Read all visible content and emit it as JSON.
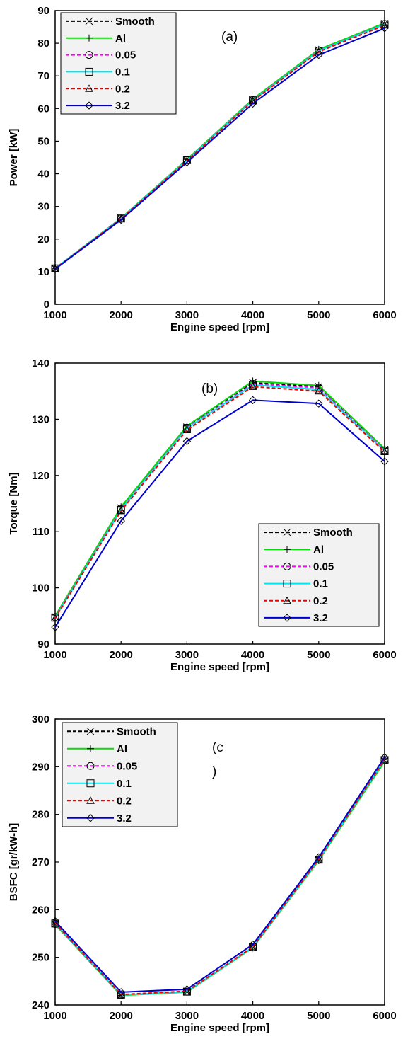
{
  "chart_data": [
    {
      "type": "line",
      "panel_label_lines": [
        "(a)"
      ],
      "x": [
        1000,
        2000,
        3000,
        4000,
        5000,
        6000
      ],
      "xlabel": "Engine speed [rpm]",
      "ylabel": "Power [kW]",
      "xlim": [
        1000,
        6000
      ],
      "ylim": [
        0,
        90
      ],
      "xticks": [
        "1000",
        "2000",
        "3000",
        "4000",
        "5000",
        "6000"
      ],
      "yticks": [
        "0",
        "10",
        "20",
        "30",
        "40",
        "50",
        "60",
        "70",
        "80",
        "90"
      ],
      "legend_position": "top-left",
      "grid": false,
      "series": [
        {
          "name": "Smooth",
          "values": [
            11.0,
            26.4,
            44.3,
            62.7,
            77.9,
            86.0
          ]
        },
        {
          "name": "Al",
          "values": [
            11.0,
            26.4,
            44.4,
            62.9,
            78.1,
            86.2
          ]
        },
        {
          "name": "0.05",
          "values": [
            11.0,
            26.3,
            44.2,
            62.6,
            77.8,
            85.9
          ]
        },
        {
          "name": "0.1",
          "values": [
            11.0,
            26.3,
            44.2,
            62.5,
            77.7,
            85.8
          ]
        },
        {
          "name": "0.2",
          "values": [
            10.9,
            26.2,
            44.0,
            62.3,
            77.4,
            85.5
          ]
        },
        {
          "name": "3.2",
          "values": [
            10.8,
            25.9,
            43.5,
            61.5,
            76.4,
            84.6
          ]
        }
      ]
    },
    {
      "type": "line",
      "panel_label_lines": [
        "(b)"
      ],
      "x": [
        1000,
        2000,
        3000,
        4000,
        5000,
        6000
      ],
      "xlabel": "Engine speed [rpm]",
      "ylabel": "Torque [Nm]",
      "xlim": [
        1000,
        6000
      ],
      "ylim": [
        90,
        140
      ],
      "xticks": [
        "1000",
        "2000",
        "3000",
        "4000",
        "5000",
        "6000"
      ],
      "yticks": [
        "90",
        "100",
        "110",
        "120",
        "130",
        "140"
      ],
      "legend_position": "bottom-right",
      "grid": false,
      "series": [
        {
          "name": "Smooth",
          "values": [
            94.9,
            114.2,
            128.6,
            136.5,
            135.8,
            124.6
          ]
        },
        {
          "name": "Al",
          "values": [
            95.0,
            114.4,
            128.8,
            136.8,
            136.0,
            124.8
          ]
        },
        {
          "name": "0.05",
          "values": [
            94.8,
            114.0,
            128.5,
            136.3,
            135.6,
            124.5
          ]
        },
        {
          "name": "0.1",
          "values": [
            94.7,
            113.9,
            128.4,
            136.1,
            135.3,
            124.4
          ]
        },
        {
          "name": "0.2",
          "values": [
            94.6,
            113.7,
            128.1,
            135.8,
            135.0,
            124.2
          ]
        },
        {
          "name": "3.2",
          "values": [
            93.0,
            111.9,
            126.1,
            133.4,
            132.8,
            122.5
          ]
        }
      ]
    },
    {
      "type": "line",
      "panel_label_lines": [
        "(c",
        ")"
      ],
      "x": [
        1000,
        2000,
        3000,
        4000,
        5000,
        6000
      ],
      "xlabel": "Engine speed [rpm]",
      "ylabel": "BSFC [gr/kW-h]",
      "xlim": [
        1000,
        6000
      ],
      "ylim": [
        240,
        300
      ],
      "xticks": [
        "1000",
        "2000",
        "3000",
        "4000",
        "5000",
        "6000"
      ],
      "yticks": [
        "240",
        "250",
        "260",
        "270",
        "280",
        "290",
        "300"
      ],
      "legend_position": "top-left",
      "grid": false,
      "series": [
        {
          "name": "Smooth",
          "values": [
            257.0,
            242.1,
            242.8,
            252.1,
            270.4,
            291.3
          ]
        },
        {
          "name": "Al",
          "values": [
            256.9,
            242.0,
            242.7,
            252.0,
            270.3,
            291.1
          ]
        },
        {
          "name": "0.05",
          "values": [
            257.0,
            242.1,
            242.8,
            252.1,
            270.5,
            291.4
          ]
        },
        {
          "name": "0.1",
          "values": [
            257.1,
            242.1,
            242.8,
            252.1,
            270.5,
            291.4
          ]
        },
        {
          "name": "0.2",
          "values": [
            257.2,
            242.2,
            242.9,
            252.2,
            270.6,
            291.5
          ]
        },
        {
          "name": "3.2",
          "values": [
            257.6,
            242.7,
            243.3,
            252.7,
            271.0,
            292.0
          ]
        }
      ]
    }
  ],
  "series_styles": [
    {
      "color": "#000000",
      "dash": "dashed",
      "marker": "x-icon"
    },
    {
      "color": "#00e000",
      "dash": "solid",
      "marker": "plus-icon"
    },
    {
      "color": "#ff00ff",
      "dash": "dashed",
      "marker": "circle-icon"
    },
    {
      "color": "#00e5ee",
      "dash": "solid",
      "marker": "square-icon"
    },
    {
      "color": "#ee0000",
      "dash": "dashed",
      "marker": "triangle-icon"
    },
    {
      "color": "#0000cc",
      "dash": "solid",
      "marker": "diamond-icon"
    }
  ]
}
